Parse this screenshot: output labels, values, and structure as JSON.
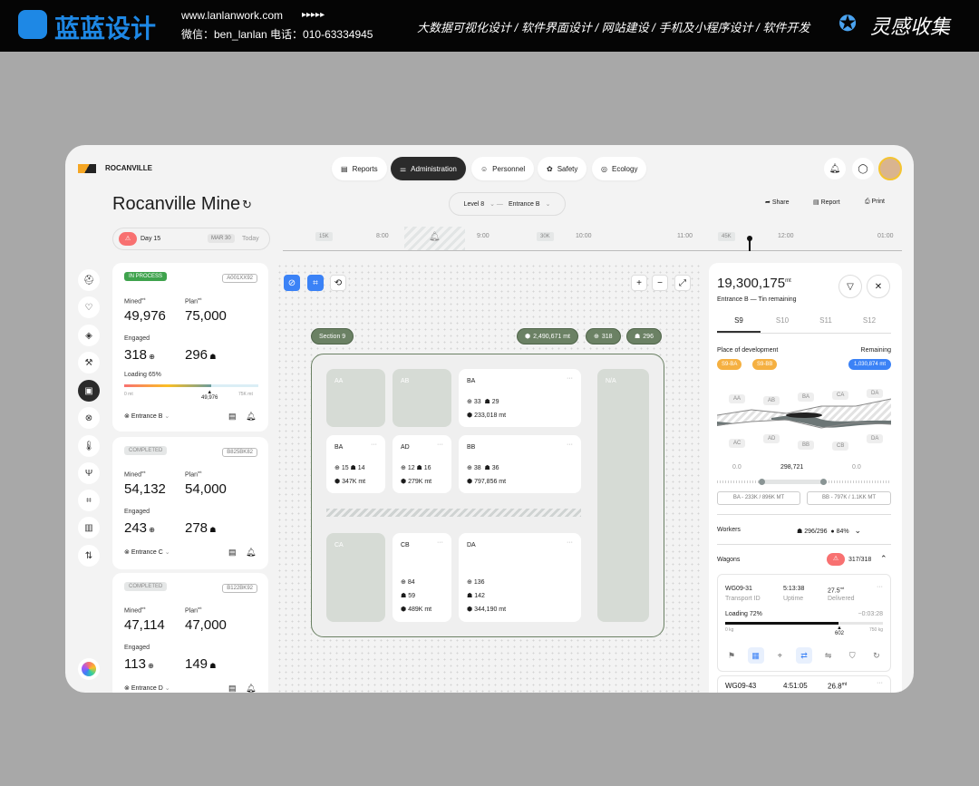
{
  "banner": {
    "brand": "蓝蓝设计",
    "url": "www.lanlanwork.com",
    "arrows": "▸▸▸▸▸",
    "contact": "微信：ben_lanlan   电话：010-63334945",
    "services": "大数据可视化设计  /  软件界面设计  /  网站建设  /  手机及小程序设计  /  软件开发",
    "collect": "灵感收集"
  },
  "app": {
    "logo": "ROCANVILLE",
    "title": "Rocanville Mine",
    "nav": [
      {
        "label": "Reports",
        "icon": "▤"
      },
      {
        "label": "Administration",
        "icon": "⚌",
        "active": true
      },
      {
        "label": "Personnel",
        "icon": "☺"
      },
      {
        "label": "Safety",
        "icon": "✿"
      },
      {
        "label": "Ecology",
        "icon": "◎"
      }
    ],
    "filters": {
      "level": "Level 8",
      "entrance": "Entrance B"
    },
    "actions": {
      "share": "Share",
      "report": "Report",
      "print": "Print"
    },
    "day": {
      "label": "Day 15",
      "date": "MAR 30",
      "today": "Today"
    },
    "timeline": {
      "times": [
        "8:00",
        "9:00",
        "10:00",
        "11:00",
        "12:00",
        "01:00"
      ],
      "markers": [
        "15K",
        "30K",
        "45K"
      ]
    }
  },
  "cards": [
    {
      "status": "IN PROCESS",
      "code": "A001XX92",
      "mined_label": "Mined",
      "plan_label": "Plan",
      "unit": "mt",
      "mined": "49,976",
      "plan": "75,000",
      "engaged_label": "Engaged",
      "engaged": "318",
      "workers": "296",
      "loading": "Loading 65%",
      "loading_pct": 65,
      "min": "0 mt",
      "max": "75K mt",
      "marker": "49,976",
      "entrance": "Entrance B"
    },
    {
      "status": "COMPLETED",
      "code": "B825BK82",
      "mined_label": "Mined",
      "plan_label": "Plan",
      "unit": "mt",
      "mined": "54,132",
      "plan": "54,000",
      "engaged_label": "Engaged",
      "engaged": "243",
      "workers": "278",
      "entrance": "Entrance C"
    },
    {
      "status": "COMPLETED",
      "code": "B122BK92",
      "mined_label": "Mined",
      "plan_label": "Plan",
      "unit": "mt",
      "mined": "47,114",
      "plan": "47,000",
      "engaged_label": "Engaged",
      "engaged": "113",
      "workers": "149",
      "entrance": "Entrance D"
    }
  ],
  "map": {
    "section": "Section 9",
    "total": "2,490,671 mt",
    "vehicles": "318",
    "workers": "296",
    "tiles": {
      "AA": "AA",
      "AB": "AB",
      "NA": "N/A",
      "CA": "CA",
      "BA1": {
        "name": "BA",
        "v": "33",
        "w": "29",
        "mt": "233,018 mt"
      },
      "BA2": {
        "name": "BA",
        "v": "15",
        "w": "14",
        "mt": "347K mt"
      },
      "AD": {
        "name": "AD",
        "v": "12",
        "w": "16",
        "mt": "279K mt"
      },
      "BB": {
        "name": "BB",
        "v": "38",
        "w": "36",
        "mt": "797,856 mt"
      },
      "CB": {
        "name": "CB",
        "v": "84",
        "w": "59",
        "mt": "489K mt"
      },
      "DA": {
        "name": "DA",
        "v": "136",
        "w": "142",
        "mt": "344,190 mt"
      }
    }
  },
  "panel": {
    "total": "19,300,175",
    "unit": "mt",
    "subtitle": "Entrance B — Tin remaining",
    "tabs": [
      "S9",
      "S10",
      "S11",
      "S12"
    ],
    "place_label": "Place of development",
    "remaining_label": "Remaining",
    "places": [
      "S9-BA",
      "S9-BB"
    ],
    "remaining": "1,030,874 mt",
    "chart_top": [
      "AA",
      "AB",
      "BA",
      "CA",
      "DA"
    ],
    "chart_bottom": [
      "AC",
      "AD",
      "BB",
      "CB",
      "DA"
    ],
    "values": [
      "0.0",
      "298,721",
      "0.0"
    ],
    "ranges": [
      "BA - 233K / 896K MT",
      "BB - 797K / 1.1KK MT"
    ],
    "workers_label": "Workers",
    "workers": "296/296",
    "workers_pct": "84%",
    "wagons_label": "Wagons",
    "wagons": "317/318",
    "wagon1": {
      "id": "WG09-31",
      "id_label": "Transport ID",
      "uptime": "5:13:38",
      "uptime_label": "Uptime",
      "delivered": "27.5",
      "delivered_label": "Delivered",
      "unit": "mt",
      "loading": "Loading 72%",
      "loading_pct": 72,
      "eta": "−0:03:28",
      "min": "0 kg",
      "max": "750 kg",
      "marker": "602"
    },
    "wagon2": {
      "id": "WG09-43",
      "uptime": "4:51:05",
      "delivered": "26.8"
    }
  },
  "colors": {
    "accent_green": "#6b8164",
    "blue": "#3b82f6",
    "orange": "#f5b041",
    "alert": "#f87171",
    "dark": "#2b2b2b"
  }
}
